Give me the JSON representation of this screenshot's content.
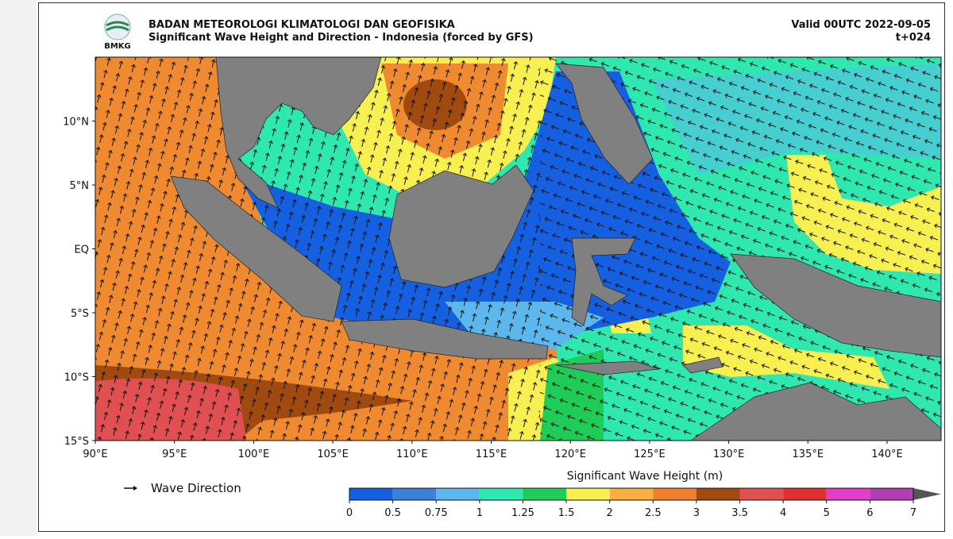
{
  "header": {
    "org": "BADAN METEOROLOGI KLIMATOLOGI DAN GEOFISIKA",
    "title": "Significant Wave Height and Direction - Indonesia (forced by GFS)",
    "valid": "Valid 00UTC 2022-09-05",
    "lead": "t+024",
    "logo": "BMKG"
  },
  "map": {
    "lat_labels": [
      "10°N",
      "5°N",
      "EQ",
      "5°S",
      "10°S",
      "15°S"
    ],
    "lon_labels": [
      "90°E",
      "95°E",
      "100°E",
      "105°E",
      "110°E",
      "115°E",
      "120°E",
      "125°E",
      "130°E",
      "135°E",
      "140°E"
    ]
  },
  "legend": {
    "arrow_label": "Wave Direction"
  },
  "colorbar": {
    "title": "Significant Wave Height (m)",
    "ticks": [
      "0",
      "0.5",
      "0.75",
      "1",
      "1.25",
      "1.5",
      "2",
      "2.5",
      "3",
      "3.5",
      "4",
      "5",
      "6",
      "7"
    ],
    "colors": [
      "#1560e0",
      "#3c80d8",
      "#5cb8ec",
      "#2ee8b0",
      "#20cc58",
      "#f8f050",
      "#f8b040",
      "#f08030",
      "#a04a10",
      "#e05050",
      "#e03030",
      "#e040c8",
      "#b040b0"
    ],
    "extend_color": "#555555"
  }
}
